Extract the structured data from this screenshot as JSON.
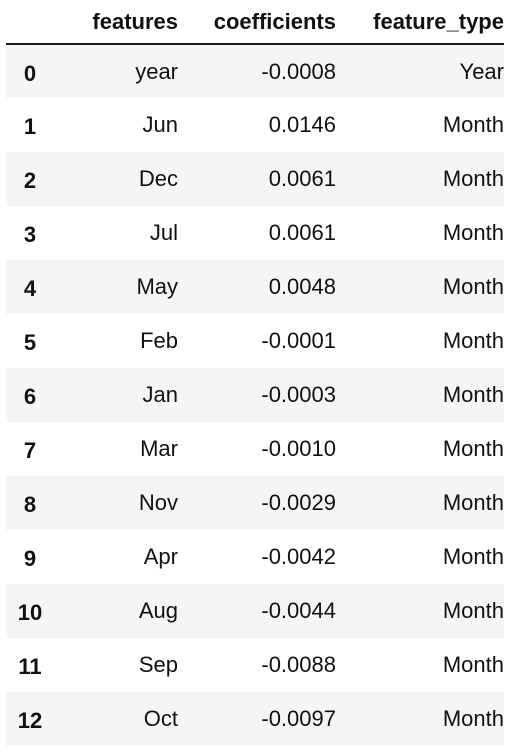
{
  "columns": {
    "index": "",
    "features": "features",
    "coefficients": "coefficients",
    "feature_type": "feature_type"
  },
  "rows": [
    {
      "index": "0",
      "features": "year",
      "coefficients": "-0.0008",
      "feature_type": "Year"
    },
    {
      "index": "1",
      "features": "Jun",
      "coefficients": "0.0146",
      "feature_type": "Month"
    },
    {
      "index": "2",
      "features": "Dec",
      "coefficients": "0.0061",
      "feature_type": "Month"
    },
    {
      "index": "3",
      "features": "Jul",
      "coefficients": "0.0061",
      "feature_type": "Month"
    },
    {
      "index": "4",
      "features": "May",
      "coefficients": "0.0048",
      "feature_type": "Month"
    },
    {
      "index": "5",
      "features": "Feb",
      "coefficients": "-0.0001",
      "feature_type": "Month"
    },
    {
      "index": "6",
      "features": "Jan",
      "coefficients": "-0.0003",
      "feature_type": "Month"
    },
    {
      "index": "7",
      "features": "Mar",
      "coefficients": "-0.0010",
      "feature_type": "Month"
    },
    {
      "index": "8",
      "features": "Nov",
      "coefficients": "-0.0029",
      "feature_type": "Month"
    },
    {
      "index": "9",
      "features": "Apr",
      "coefficients": "-0.0042",
      "feature_type": "Month"
    },
    {
      "index": "10",
      "features": "Aug",
      "coefficients": "-0.0044",
      "feature_type": "Month"
    },
    {
      "index": "11",
      "features": "Sep",
      "coefficients": "-0.0088",
      "feature_type": "Month"
    },
    {
      "index": "12",
      "features": "Oct",
      "coefficients": "-0.0097",
      "feature_type": "Month"
    }
  ]
}
